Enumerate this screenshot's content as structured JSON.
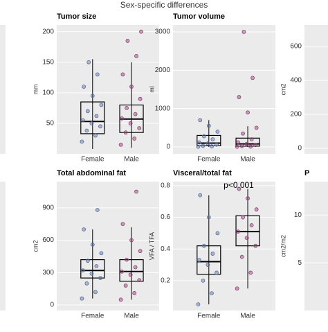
{
  "title": "Sex-specific differences",
  "chart_data": [
    {
      "type": "box",
      "title": "Tumor size",
      "ylabel": "mm",
      "categories": [
        "Female",
        "Male"
      ],
      "colors": [
        "#5a6e9e",
        "#8e3f72"
      ],
      "ylim": [
        0,
        211
      ],
      "yticks": [
        50,
        100,
        150,
        200
      ],
      "boxes": [
        {
          "min": 8,
          "q1": 33,
          "median": 53,
          "q3": 85,
          "max": 155,
          "points": [
            20,
            30,
            38,
            45,
            50,
            55,
            62,
            70,
            80,
            95,
            110,
            130,
            150
          ]
        },
        {
          "min": 10,
          "q1": 35,
          "median": 57,
          "q3": 80,
          "max": 150,
          "points": [
            15,
            25,
            35,
            42,
            50,
            58,
            65,
            75,
            90,
            110,
            130,
            160,
            185,
            200
          ]
        }
      ]
    },
    {
      "type": "box",
      "title": "Tumor volume",
      "ylabel": "ml",
      "categories": [
        "Female",
        "Male"
      ],
      "colors": [
        "#5a6e9e",
        "#8e3f72"
      ],
      "ylim": [
        -180,
        3180
      ],
      "yticks": [
        0,
        1000,
        2000,
        3000
      ],
      "boxes": [
        {
          "min": 0,
          "q1": 30,
          "median": 100,
          "q3": 300,
          "max": 700,
          "points": [
            5,
            15,
            30,
            60,
            90,
            120,
            200,
            280,
            400,
            550,
            700
          ]
        },
        {
          "min": 0,
          "q1": 20,
          "median": 80,
          "q3": 230,
          "max": 540,
          "points": [
            5,
            10,
            25,
            50,
            80,
            120,
            200,
            350,
            500,
            900,
            1300,
            1800,
            3000
          ]
        }
      ]
    },
    {
      "type": "box",
      "ylabel": "cm2",
      "ylim": [
        -33,
        727
      ],
      "yticks": [
        0,
        200,
        400,
        600
      ]
    },
    {
      "type": "box",
      "title": "Total abdominal fat",
      "ylabel": "cm2",
      "categories": [
        "Female",
        "Male"
      ],
      "colors": [
        "#5a6e9e",
        "#8e3f72"
      ],
      "ylim": [
        -51,
        1143
      ],
      "yticks": [
        0,
        300,
        600,
        900
      ],
      "boxes": [
        {
          "min": 60,
          "q1": 250,
          "median": 320,
          "q3": 420,
          "max": 700,
          "points": [
            60,
            120,
            200,
            250,
            290,
            320,
            360,
            410,
            480,
            560,
            700,
            880
          ]
        },
        {
          "min": 50,
          "q1": 220,
          "median": 310,
          "q3": 420,
          "max": 720,
          "points": [
            50,
            110,
            180,
            230,
            280,
            310,
            350,
            420,
            500,
            600,
            750,
            1050
          ]
        }
      ]
    },
    {
      "type": "box",
      "title": "Visceral/total fat",
      "ylabel": "VFA / TFA",
      "annotation": "p<0.001",
      "categories": [
        "Female",
        "Male"
      ],
      "colors": [
        "#5a6e9e",
        "#8e3f72"
      ],
      "ylim": [
        0.011,
        0.826
      ],
      "yticks": [
        0.2,
        0.4,
        0.6,
        0.8
      ],
      "boxes": [
        {
          "min": 0.05,
          "q1": 0.24,
          "median": 0.32,
          "q3": 0.42,
          "max": 0.74,
          "points": [
            0.05,
            0.12,
            0.2,
            0.25,
            0.3,
            0.33,
            0.37,
            0.42,
            0.5,
            0.6,
            0.74
          ]
        },
        {
          "min": 0.15,
          "q1": 0.42,
          "median": 0.51,
          "q3": 0.61,
          "max": 0.78,
          "points": [
            0.15,
            0.25,
            0.35,
            0.42,
            0.47,
            0.51,
            0.55,
            0.6,
            0.65,
            0.72,
            0.78
          ]
        }
      ]
    },
    {
      "type": "box",
      "title": "P",
      "ylabel": "cm2/m2",
      "ylim": [
        0,
        13.5
      ],
      "yticks": [
        5,
        10
      ]
    }
  ]
}
